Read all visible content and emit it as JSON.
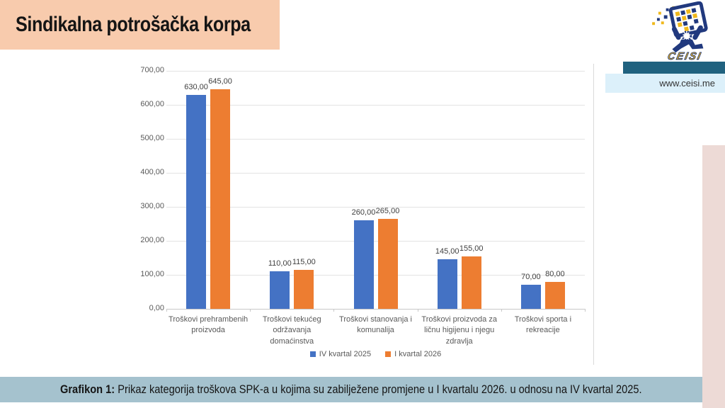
{
  "header": {
    "title": "Sindikalna potrošačka korpa",
    "logo": {
      "text": "CEISI"
    },
    "website": "www.ceisi.me"
  },
  "footer": {
    "caption_label": "Grafikon 1:",
    "caption_text": "Prikaz kategorija troškova SPK-a u kojima su zabilježene promjene u I kvartalu 2026. u odnosu na IV kvartal 2025."
  },
  "colors": {
    "title_bg": "#F8CBAD",
    "teal_bar": "#20627F",
    "website_bg": "#DCF0FA",
    "caption_bg": "#A5C2CE",
    "side_bar": "#EDDAD6",
    "logo_navy": "#21397E",
    "logo_yellow": "#F0B81B",
    "series1": "#4472C4",
    "series2": "#ED7D31",
    "gridline": "#E2E2E2",
    "axis_text": "#595959"
  },
  "chart_data": {
    "type": "bar",
    "title": "",
    "xlabel": "",
    "ylabel": "",
    "categories": [
      "Troškovi prehrambenih proizvoda",
      "Troškovi tekućeg održavanja domaćinstva",
      "Troškovi stanovanja i komunalija",
      "Troškovi proizvoda za ličnu higijenu i njegu zdravlja",
      "Troškovi sporta i rekreacije"
    ],
    "series": [
      {
        "name": "IV kvartal 2025",
        "color": "#4472C4",
        "values": [
          630,
          110,
          260,
          145,
          70
        ]
      },
      {
        "name": "I kvartal 2026",
        "color": "#ED7D31",
        "values": [
          645,
          115,
          265,
          155,
          80
        ]
      }
    ],
    "ylim": [
      0,
      700
    ],
    "ytick_step": 100,
    "decimal_separator": ",",
    "decimals": 2,
    "grid": true,
    "data_labels": true,
    "legend_position": "bottom"
  }
}
